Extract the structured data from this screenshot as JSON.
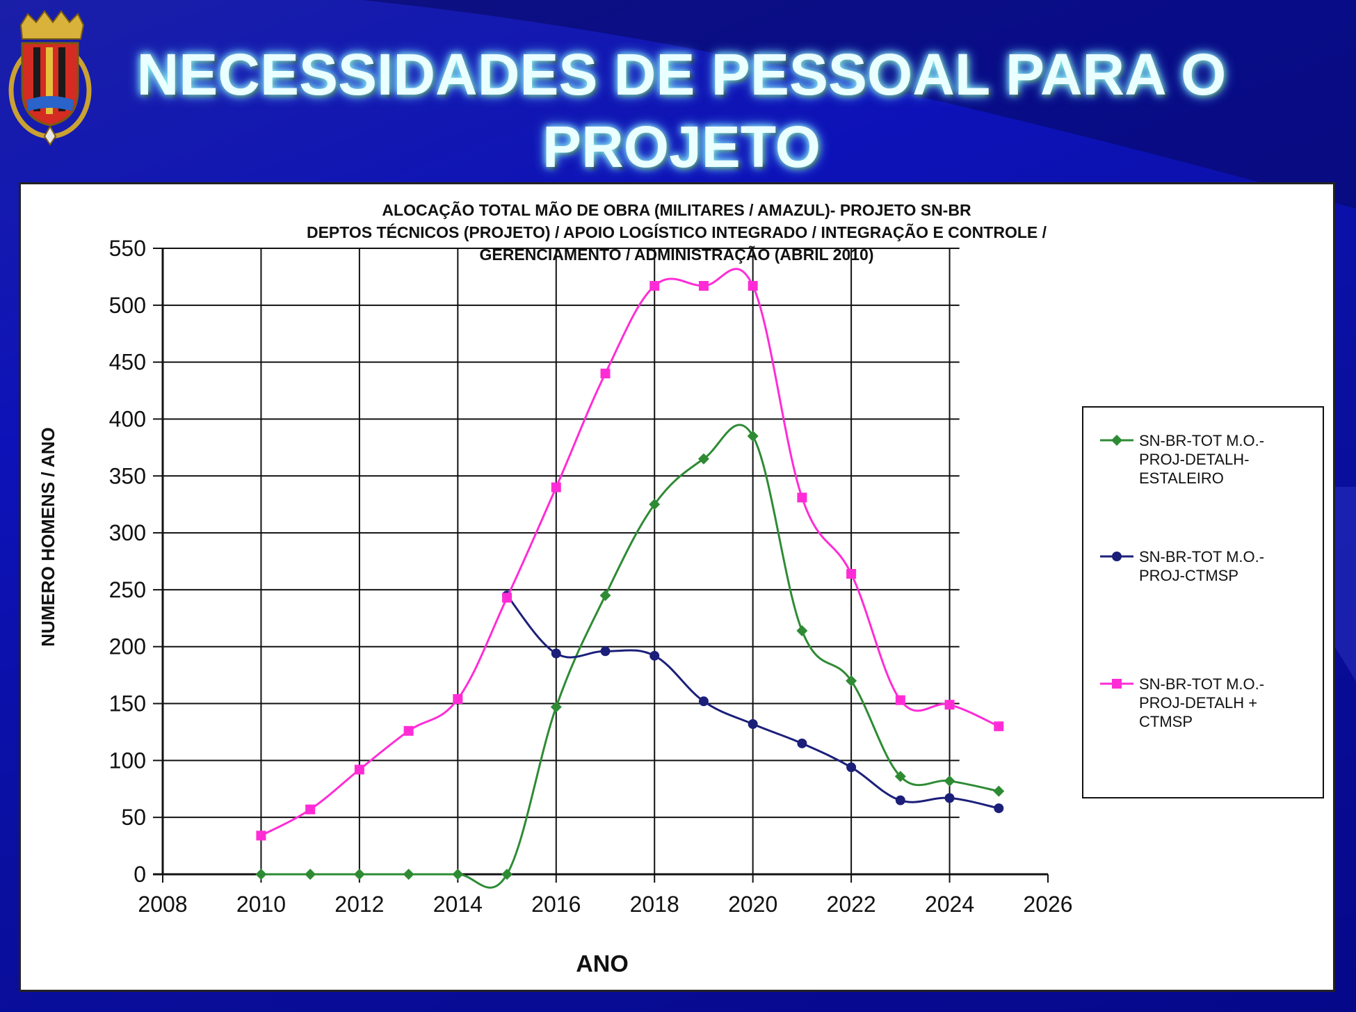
{
  "slide": {
    "title": "NECESSIDADES DE PESSOAL PARA O PROJETO"
  },
  "colors": {
    "background": "#0d12b8",
    "title_text": "#eaffff",
    "series_green": "#2e8b34",
    "series_navy": "#1b1f7a",
    "series_magenta": "#ff2cd6"
  },
  "chart_data": {
    "type": "line",
    "title_lines": [
      "ALOCAÇÃO TOTAL MÃO DE OBRA (MILITARES / AMAZUL)- PROJETO SN-BR",
      "DEPTOS TÉCNICOS (PROJETO) / APOIO LOGÍSTICO INTEGRADO / INTEGRAÇÃO  E CONTROLE  /",
      "GERENCIAMENTO / ADMINISTRAÇÃO  (ABRIL 2010)"
    ],
    "xlabel": "ANO",
    "ylabel": "NUMERO HOMENS / ANO",
    "xlim": [
      2008,
      2026
    ],
    "ylim": [
      0,
      550
    ],
    "x_ticks": [
      2008,
      2010,
      2012,
      2014,
      2016,
      2018,
      2020,
      2022,
      2024,
      2026
    ],
    "y_ticks": [
      0,
      50,
      100,
      150,
      200,
      250,
      300,
      350,
      400,
      450,
      500,
      550
    ],
    "grid": true,
    "legend_position": "right",
    "series": [
      {
        "name": "SN-BR-TOT M.O.-PROJ-DETALH-ESTALEIRO",
        "legend_lines": [
          "SN-BR-TOT M.O.-",
          "PROJ-DETALH-",
          "ESTALEIRO"
        ],
        "marker": "diamond",
        "color": "#2e8b34",
        "x": [
          2010,
          2011,
          2012,
          2013,
          2014,
          2015,
          2016,
          2017,
          2018,
          2019,
          2020,
          2021,
          2022,
          2023,
          2024,
          2025
        ],
        "y": [
          0,
          0,
          0,
          0,
          0,
          0,
          147,
          245,
          325,
          365,
          385,
          214,
          170,
          86,
          82,
          73
        ]
      },
      {
        "name": "SN-BR-TOT M.O.-PROJ-CTMSP",
        "legend_lines": [
          "SN-BR-TOT M.O.-",
          "PROJ-CTMSP"
        ],
        "marker": "circle",
        "color": "#1b1f7a",
        "x": [
          2015,
          2016,
          2017,
          2018,
          2019,
          2020,
          2021,
          2022,
          2023,
          2024,
          2025
        ],
        "y": [
          245,
          194,
          196,
          192,
          152,
          132,
          115,
          94,
          65,
          67,
          58
        ]
      },
      {
        "name": "SN-BR-TOT M.O.-PROJ-DETALH + CTMSP",
        "legend_lines": [
          "SN-BR-TOT M.O.-",
          "PROJ-DETALH +",
          "CTMSP"
        ],
        "marker": "square",
        "color": "#ff2cd6",
        "x": [
          2010,
          2011,
          2012,
          2013,
          2014,
          2015,
          2016,
          2017,
          2018,
          2019,
          2020,
          2021,
          2022,
          2023,
          2024,
          2025
        ],
        "y": [
          34,
          57,
          92,
          126,
          154,
          243,
          340,
          440,
          517,
          517,
          517,
          331,
          264,
          153,
          149,
          130
        ]
      }
    ]
  }
}
